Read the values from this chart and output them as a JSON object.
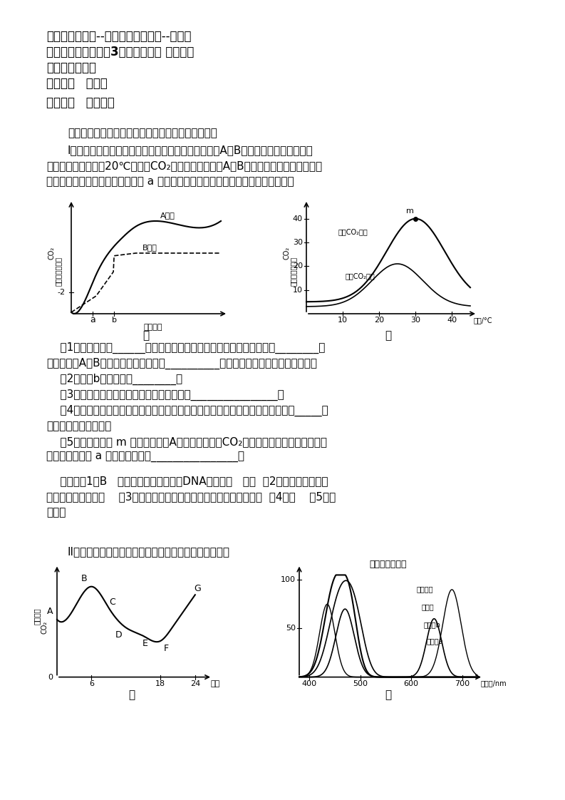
{
  "title_lines": [
    "高考总复习课程--高考冲刺串讲课程--理化生",
    "高考生物冲刺串讲第3讲：突出重点 点面结合",
    "主讲人：林祖荣",
    "第一部分   开篇语",
    "第二部分   金题精讲"
  ],
  "section1_header": "题一：回答下面与光合作用及细胞呼吸相关的问题：",
  "section1_text": "    I．植物的光合作用受内、外多种因素的影响。下图是A、B两种植物光合速率的检测\n实验结果。甲图是在20℃、空气CO₂浓度条件下测得的A、B两种植物光合速率随光照强\n度变化的关系曲线，乙图是在甲图 a 点的条件下测得的相关曲线。请据图回答问题：",
  "questions": [
    "    （1）甲图表明，______植物更适宜在林荫下生长，这是由植物本身的________决\n定的。可将A、B共同种植，形成群落的__________结构，达到充分利用光能的目的。",
    "    （2）甲图b点的含义是________。",
    "    （3）乙图中两曲线后段呈下降趋势的原因是________________。",
    "    （4）乙图中两曲线表明，温度可以影响光合作用。温度主要通过影响光合作用的_____反\n应而影响光合产物量。",
    "    （5）如在乙图的 m 点条件下测得A植物光照强度与CO₂吸收速率关系曲线，则该曲线\n与甲图曲线比较 a 点的移动情况是________________。"
  ],
  "answer": "    答案：（1）B   遗传物质（遗传特性、DNA、基因）   垂直  （2）植物光合作用速\n率等于呼吸作用速率    （3）温度过高，酶活性降低（或叶片气孔关闭）  （4）暗    （5）向\n右上移",
  "section2_header": "    II．下图为蔬菜大棚中测定的相关数据，请分析并回答：",
  "background_color": "#ffffff",
  "text_color": "#000000"
}
